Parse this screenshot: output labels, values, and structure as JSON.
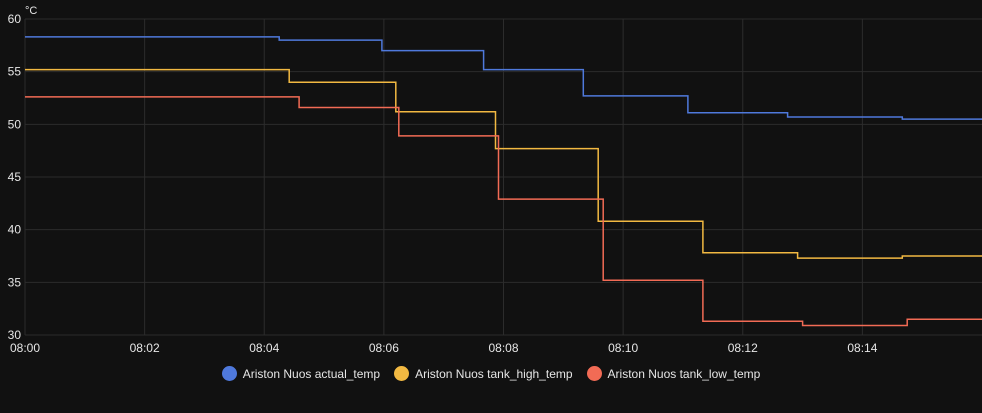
{
  "chart_data": {
    "type": "line",
    "unit": "°C",
    "ylim": [
      30,
      60
    ],
    "y_ticks": [
      30,
      35,
      40,
      45,
      50,
      55,
      60
    ],
    "xlim": [
      "08:00",
      "08:16"
    ],
    "x_ticks": [
      "08:00",
      "08:02",
      "08:04",
      "08:06",
      "08:08",
      "08:10",
      "08:12",
      "08:14"
    ],
    "grid": true,
    "legend_position": "bottom",
    "step": true,
    "series": [
      {
        "name": "Ariston Nuos actual_temp",
        "color": "#4f79dc",
        "points": [
          [
            "08:00",
            58.3
          ],
          [
            "08:02:30",
            58.3
          ],
          [
            "08:04:15",
            58.0
          ],
          [
            "08:05:58",
            57.0
          ],
          [
            "08:07:40",
            55.2
          ],
          [
            "08:09:20",
            52.7
          ],
          [
            "08:11:05",
            51.1
          ],
          [
            "08:12:45",
            50.7
          ],
          [
            "08:14:40",
            50.5
          ],
          [
            "08:16",
            50.5
          ]
        ]
      },
      {
        "name": "Ariston Nuos tank_high_temp",
        "color": "#f2b942",
        "points": [
          [
            "08:00",
            55.2
          ],
          [
            "08:04:25",
            54.0
          ],
          [
            "08:06:12",
            51.2
          ],
          [
            "08:07:52",
            47.7
          ],
          [
            "08:09:35",
            40.8
          ],
          [
            "08:11:20",
            37.8
          ],
          [
            "08:12:55",
            37.3
          ],
          [
            "08:14:40",
            37.5
          ],
          [
            "08:16",
            37.5
          ]
        ]
      },
      {
        "name": "Ariston Nuos tank_low_temp",
        "color": "#f26b55",
        "points": [
          [
            "08:00",
            52.6
          ],
          [
            "08:04:35",
            51.6
          ],
          [
            "08:06:15",
            48.9
          ],
          [
            "08:07:55",
            42.9
          ],
          [
            "08:09:40",
            35.2
          ],
          [
            "08:11:20",
            31.3
          ],
          [
            "08:13:00",
            30.9
          ],
          [
            "08:14:45",
            31.5
          ],
          [
            "08:16",
            31.5
          ]
        ]
      }
    ]
  }
}
